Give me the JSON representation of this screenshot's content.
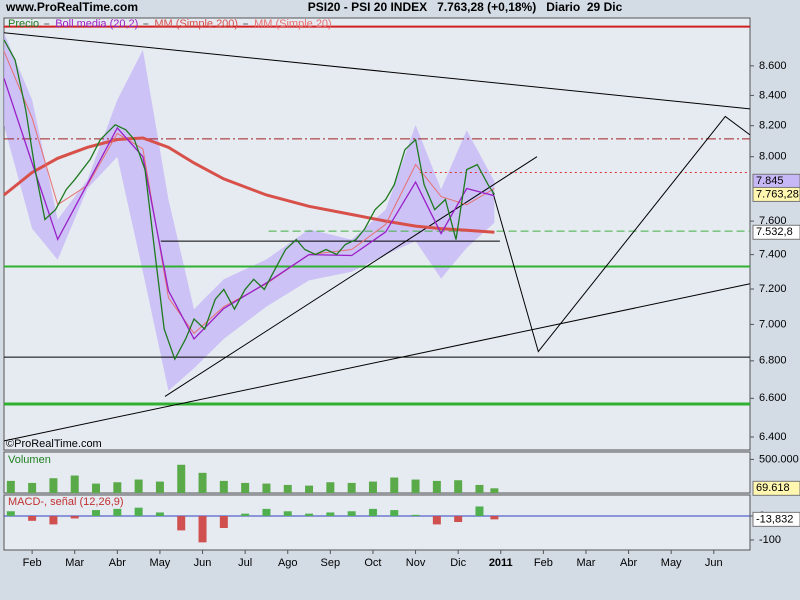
{
  "source": "www.ProRealTime.com",
  "watermark": "©ProRealTime.com",
  "chart_data": [
    {
      "type": "line",
      "title": "PSI20 - PSI 20 INDEX   7.763,28 (+0,18%)   Diario  29 Dic",
      "log": true,
      "ylim": [
        6334,
        8934
      ],
      "xlim": [
        0.34,
        17.85
      ],
      "yticks": [
        {
          "value": 6400,
          "label": "6.400"
        },
        {
          "value": 6600,
          "label": "6.600"
        },
        {
          "value": 6800,
          "label": "6.800"
        },
        {
          "value": 7000,
          "label": "7.000"
        },
        {
          "value": 7200,
          "label": "7.200"
        },
        {
          "value": 7400,
          "label": "7.400"
        },
        {
          "value": 7600,
          "label": "7.600"
        },
        {
          "value": 8000,
          "label": "8.000"
        },
        {
          "value": 8200,
          "label": "8.200"
        },
        {
          "value": 8400,
          "label": "8.400"
        },
        {
          "value": 8600,
          "label": "8.600"
        }
      ],
      "xticks": [
        {
          "value": 1,
          "label": "Feb"
        },
        {
          "value": 2,
          "label": "Mar"
        },
        {
          "value": 3,
          "label": "Abr"
        },
        {
          "value": 4,
          "label": "May"
        },
        {
          "value": 5,
          "label": "Jun"
        },
        {
          "value": 6,
          "label": "Jul"
        },
        {
          "value": 7,
          "label": "Ago"
        },
        {
          "value": 8,
          "label": "Sep"
        },
        {
          "value": 9,
          "label": "Oct"
        },
        {
          "value": 10,
          "label": "Nov"
        },
        {
          "value": 11,
          "label": "Dic"
        },
        {
          "value": 12,
          "label": "2011"
        },
        {
          "value": 13,
          "label": "Feb"
        },
        {
          "value": 14,
          "label": "Mar"
        },
        {
          "value": 15,
          "label": "Abr"
        },
        {
          "value": 16,
          "label": "May"
        },
        {
          "value": 17,
          "label": "Jun"
        }
      ],
      "series": [
        {
          "name": "Precio",
          "color": "#1f7a1f",
          "x": [
            0.34,
            0.6,
            0.85,
            1.07,
            1.3,
            1.55,
            1.8,
            2.0,
            2.36,
            2.6,
            2.95,
            3.2,
            3.4,
            3.65,
            3.9,
            4.1,
            4.35,
            4.6,
            4.8,
            5.05,
            5.3,
            5.5,
            5.75,
            6.0,
            6.2,
            6.45,
            6.7,
            6.95,
            7.2,
            7.4,
            7.65,
            7.9,
            8.15,
            8.35,
            8.6,
            8.8,
            9.05,
            9.3,
            9.5,
            9.75,
            10.0,
            10.2,
            10.45,
            10.7,
            10.95,
            11.2,
            11.45,
            11.7,
            11.85
          ],
          "values": [
            8780,
            8640,
            8305,
            7918,
            7610,
            7670,
            7793,
            7855,
            7982,
            8109,
            8206,
            8173,
            8109,
            7918,
            7372,
            6974,
            6809,
            6918,
            7030,
            6974,
            7142,
            7198,
            7086,
            7198,
            7256,
            7198,
            7314,
            7430,
            7489,
            7430,
            7401,
            7430,
            7401,
            7460,
            7489,
            7550,
            7670,
            7732,
            7824,
            8045,
            8109,
            7824,
            7670,
            7732,
            7489,
            7918,
            7950,
            7824,
            7763.28
          ]
        },
        {
          "name": "Boll media (20,2)",
          "color": "#9a20c8",
          "band_color": "#c6b8f6",
          "x": [
            0.34,
            1,
            1.6,
            2.3,
            3,
            3.6,
            4.2,
            4.8,
            5.5,
            6.5,
            7.5,
            8.5,
            9.3,
            10,
            10.6,
            11.2,
            11.85
          ],
          "values": [
            8515,
            7960,
            7490,
            7830,
            8185,
            8000,
            7190,
            6920,
            7090,
            7235,
            7400,
            7395,
            7535,
            7840,
            7525,
            7800,
            7755
          ],
          "upper": [
            8830,
            8370,
            7610,
            7855,
            8370,
            8710,
            7732,
            7086,
            7256,
            7372,
            7550,
            7489,
            7670,
            8205,
            7795,
            8170,
            7845
          ],
          "lower": [
            8200,
            7555,
            7370,
            7800,
            8000,
            7300,
            6640,
            6760,
            6920,
            7100,
            7250,
            7300,
            7400,
            7480,
            7260,
            7440,
            7590
          ]
        },
        {
          "name": "MM (Simple 200)",
          "color": "#d8504a",
          "width": 3,
          "x": [
            0.34,
            1,
            1.6,
            2.3,
            3,
            3.6,
            4.2,
            4.8,
            5.5,
            6.5,
            7.5,
            8.5,
            9.3,
            10,
            10.6,
            11.2,
            11.85
          ],
          "values": [
            7760,
            7900,
            7990,
            8060,
            8110,
            8120,
            8060,
            7960,
            7860,
            7760,
            7690,
            7640,
            7600,
            7570,
            7555,
            7545,
            7532.8
          ]
        },
        {
          "name": "MM (Simple 20)",
          "color": "#e87070",
          "width": 1,
          "x": [
            0.34,
            1,
            1.6,
            2.3,
            3,
            3.6,
            4.2,
            4.8,
            5.5,
            6.5,
            7.5,
            8.5,
            9.3,
            10,
            10.6,
            11.2,
            11.85
          ],
          "values": [
            8700,
            8250,
            7700,
            7820,
            8150,
            8050,
            7150,
            6950,
            7100,
            7230,
            7400,
            7430,
            7580,
            7950,
            7750,
            7700,
            7800
          ]
        }
      ],
      "side_labels": [
        {
          "value": 7845,
          "label": "7.845",
          "color": "#c6b8f6"
        },
        {
          "value": 7763.28,
          "label": "7.763,28",
          "color": "#fff6b0"
        },
        {
          "value": 7532.8,
          "label": "7.532,8",
          "color": "#ffffff"
        }
      ],
      "hlines": [
        {
          "value": 8873,
          "color": "#d02020",
          "style": "solid",
          "width": 2
        },
        {
          "value": 8114,
          "color": "#a02020",
          "style": "dashdot",
          "width": 1
        },
        {
          "value": 7900,
          "color": "#e03030",
          "style": "dotted",
          "width": 1,
          "from": 10.1
        },
        {
          "value": 7540,
          "color": "#40b040",
          "style": "dashed",
          "width": 1,
          "from": 6.55
        },
        {
          "value": 7330,
          "color": "#30b030",
          "style": "solid",
          "width": 2
        },
        {
          "value": 6820,
          "color": "#000000",
          "style": "solid",
          "width": 1
        },
        {
          "value": 6570,
          "color": "#30b030",
          "style": "solid",
          "width": 3
        },
        {
          "value": 7480,
          "color": "#000000",
          "style": "solid",
          "width": 1,
          "from": 4.02,
          "to": 11.98
        }
      ],
      "trendlines": [
        {
          "x": [
            0.34,
            17.85
          ],
          "y": [
            8830,
            8310
          ]
        },
        {
          "x": [
            4.12,
            12.85
          ],
          "y": [
            6610,
            8000
          ]
        },
        {
          "x": [
            0.34,
            17.85
          ],
          "y": [
            6380,
            7230
          ]
        },
        {
          "x": [
            11.8,
            12.88,
            17.27,
            17.85
          ],
          "y": [
            7790,
            6850,
            8260,
            8140
          ]
        }
      ]
    },
    {
      "type": "bar",
      "title": "Volumen",
      "color": "#5aaa4a",
      "ylim": [
        0,
        610000
      ],
      "yticks": [
        {
          "value": 500000,
          "label": "500.000"
        }
      ],
      "x": [
        0.5,
        1,
        1.5,
        2,
        2.5,
        3,
        3.5,
        4,
        4.5,
        5,
        5.5,
        6,
        6.5,
        7,
        7.5,
        8,
        8.5,
        9,
        9.5,
        10,
        10.5,
        11,
        11.5,
        11.85
      ],
      "values": [
        180000,
        150000,
        220000,
        260000,
        140000,
        160000,
        200000,
        170000,
        420000,
        300000,
        180000,
        150000,
        140000,
        120000,
        110000,
        160000,
        150000,
        170000,
        230000,
        200000,
        180000,
        190000,
        120000,
        69618
      ],
      "last_label": {
        "value": 69618,
        "label": "69.618"
      }
    },
    {
      "type": "bar",
      "title": "MACD-, señal (12,26,9)",
      "color_up": "#50b050",
      "color_down": "#d05050",
      "ylim": [
        -142,
        88
      ],
      "yticks": [
        -100,
        0
      ],
      "x": [
        0.5,
        1,
        1.5,
        2,
        2.5,
        3,
        3.5,
        4,
        4.5,
        5,
        5.5,
        6,
        6.5,
        7,
        7.5,
        8,
        8.5,
        9,
        9.5,
        10,
        10.5,
        11,
        11.5,
        11.85
      ],
      "values": [
        20,
        -20,
        -35,
        -10,
        25,
        30,
        35,
        15,
        -60,
        -110,
        -50,
        10,
        30,
        20,
        10,
        15,
        20,
        30,
        25,
        5,
        -35,
        -25,
        40,
        -13.832
      ],
      "last_label": {
        "value": -13.832,
        "label": "-13,832"
      }
    }
  ]
}
